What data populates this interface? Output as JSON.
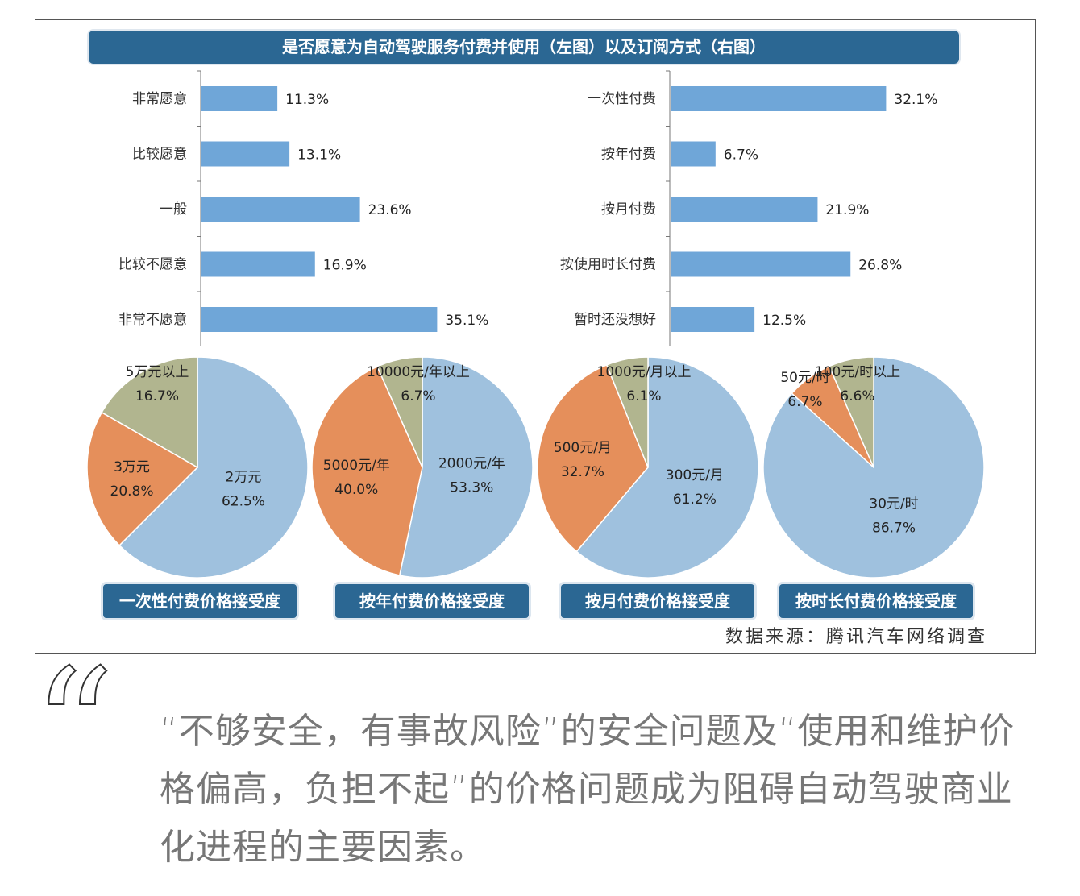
{
  "title": "是否愿意为自动驾驶服务付费并使用（左图）以及订阅方式（右图）",
  "source": "数据来源：腾讯汽车网络调查",
  "quote": "“不够安全，有事故风险”的安全问题及“使用和维护价格偏高，负担不起”的价格问题成为阻碍自动驾驶商业化进程的主要因素。",
  "colors": {
    "bar": "#6fa6d8",
    "blue": "#9fc1de",
    "orange": "#e58f5b",
    "gray": "#b1b58f",
    "banner": "#2b6793"
  },
  "chart_data": [
    {
      "type": "bar",
      "orientation": "horizontal",
      "categories": [
        "非常愿意",
        "比较愿意",
        "一般",
        "比较不愿意",
        "非常不愿意"
      ],
      "values": [
        11.3,
        13.1,
        23.6,
        16.9,
        35.1
      ],
      "labels": [
        "11.3%",
        "13.1%",
        "23.6%",
        "16.9%",
        "35.1%"
      ]
    },
    {
      "type": "bar",
      "orientation": "horizontal",
      "categories": [
        "一次性付费",
        "按年付费",
        "按月付费",
        "按使用时长付费",
        "暂时还没想好"
      ],
      "values": [
        32.1,
        6.7,
        21.9,
        26.8,
        12.5
      ],
      "labels": [
        "32.1%",
        "6.7%",
        "21.9%",
        "26.8%",
        "12.5%"
      ]
    },
    {
      "type": "pie",
      "title": "一次性付费价格接受度",
      "slices": [
        {
          "name": "2万元",
          "value": 62.5,
          "label": "62.5%",
          "color": "blue"
        },
        {
          "name": "3万元",
          "value": 20.8,
          "label": "20.8%",
          "color": "orange"
        },
        {
          "name": "5万元以上",
          "value": 16.7,
          "label": "16.7%",
          "color": "gray"
        }
      ]
    },
    {
      "type": "pie",
      "title": "按年付费价格接受度",
      "slices": [
        {
          "name": "2000元/年",
          "value": 53.3,
          "label": "53.3%",
          "color": "blue"
        },
        {
          "name": "5000元/年",
          "value": 40.0,
          "label": "40.0%",
          "color": "orange"
        },
        {
          "name": "10000元/年以上",
          "value": 6.7,
          "label": "6.7%",
          "color": "gray"
        }
      ]
    },
    {
      "type": "pie",
      "title": "按月付费价格接受度",
      "slices": [
        {
          "name": "300元/月",
          "value": 61.2,
          "label": "61.2%",
          "color": "blue"
        },
        {
          "name": "500元/月",
          "value": 32.7,
          "label": "32.7%",
          "color": "orange"
        },
        {
          "name": "1000元/月以上",
          "value": 6.1,
          "label": "6.1%",
          "color": "gray"
        }
      ]
    },
    {
      "type": "pie",
      "title": "按时长付费价格接受度",
      "slices": [
        {
          "name": "30元/时",
          "value": 86.7,
          "label": "86.7%",
          "color": "blue"
        },
        {
          "name": "50元/时",
          "value": 6.7,
          "label": "6.7%",
          "color": "orange"
        },
        {
          "name": "100元/时以上",
          "value": 6.6,
          "label": "6.6%",
          "color": "gray"
        }
      ]
    }
  ]
}
